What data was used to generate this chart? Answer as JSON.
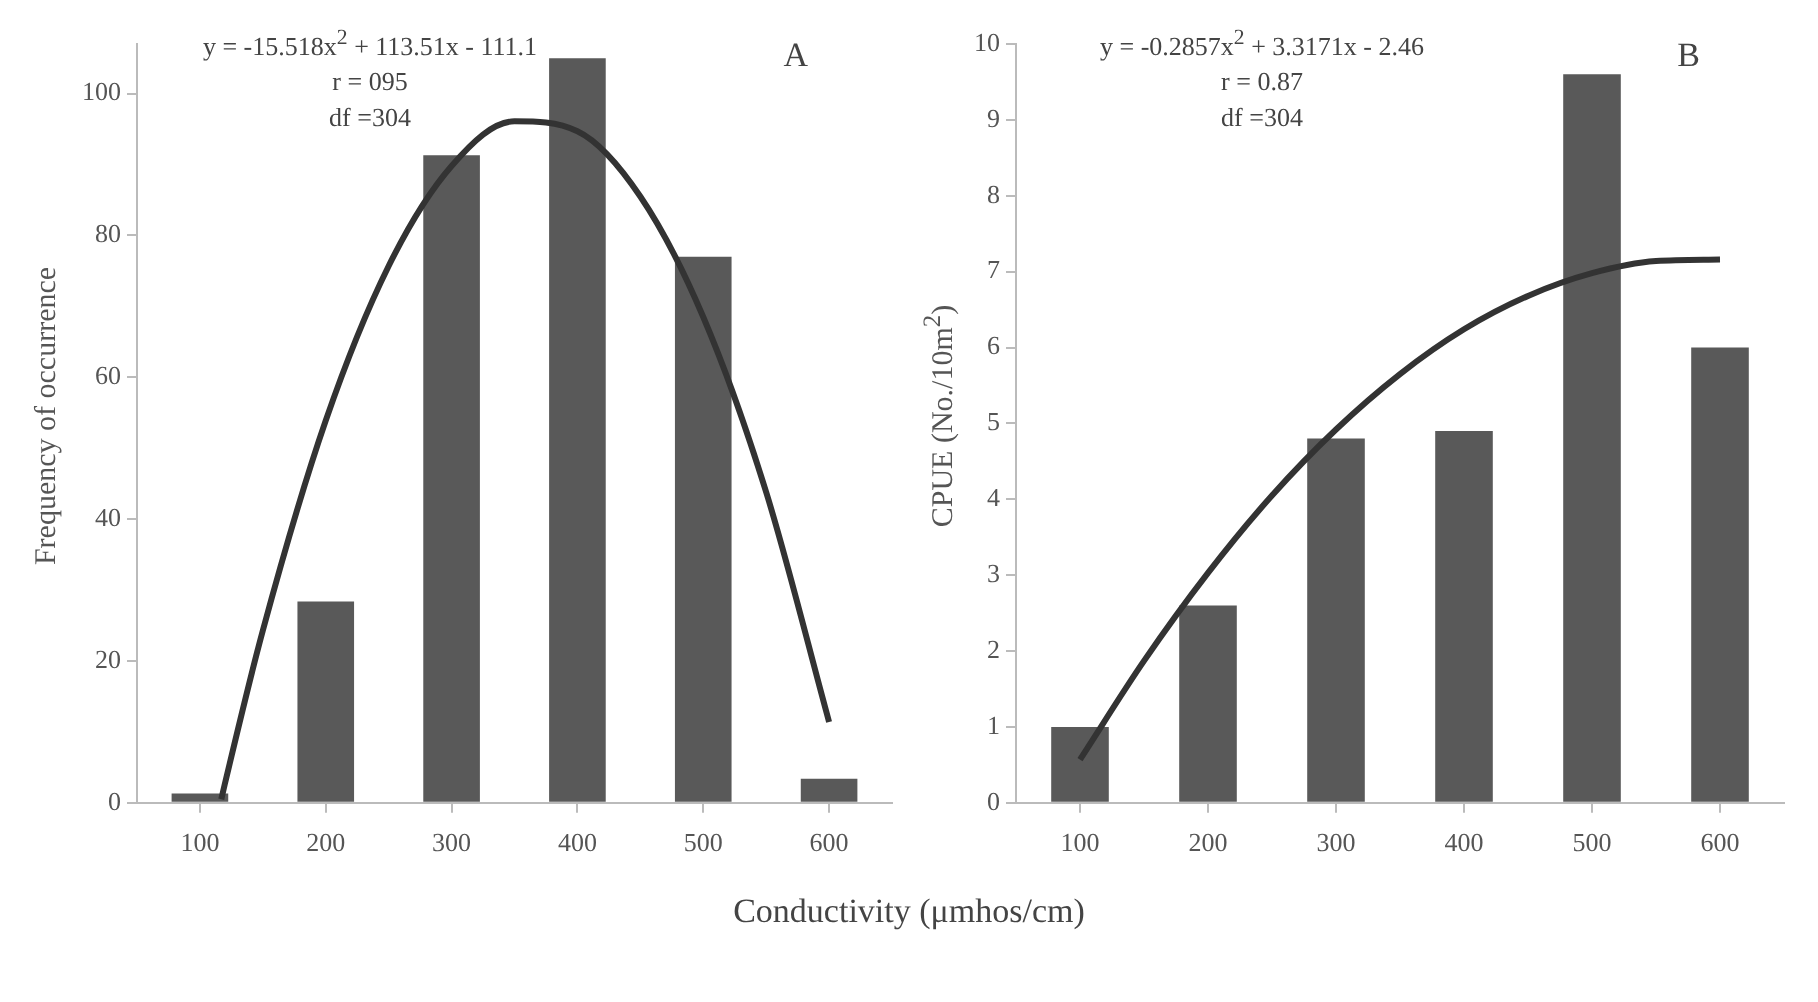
{
  "chart_data": [
    {
      "type": "bar",
      "title": "A",
      "ylabel": "Frequency of occurrence",
      "xlabel": "Conductivity (μmhos/cm)",
      "annotations": [
        "y = -15.518x$^{2}$ + 113.51x - 111.1",
        "r = 095",
        "df =304"
      ],
      "xlim": [
        50,
        650
      ],
      "xticks": [
        100,
        200,
        300,
        400,
        500,
        600
      ],
      "ylim": [
        0,
        107
      ],
      "yticks": [
        0,
        20,
        40,
        60,
        80,
        100
      ],
      "marker": "none",
      "x": [
        100,
        200,
        300,
        400,
        500,
        600
      ],
      "series": [
        {
          "color": "#595959",
          "values": [
            1.3,
            28.4,
            91.3,
            105,
            77,
            3.4
          ]
        },
        {
          "type": "line",
          "color": "#333333",
          "x": [
            117,
            120,
            150,
            200,
            250,
            300,
            350,
            400,
            450,
            500,
            550,
            600
          ],
          "values": [
            0.5,
            2.8,
            24.3,
            53.9,
            75.7,
            89.8,
            96.1,
            94.7,
            85.5,
            68.5,
            43.8,
            11.4
          ]
        }
      ]
    },
    {
      "type": "bar",
      "title": "B",
      "ylabel": "CPUE (No./10m$^{2}$)",
      "annotations": [
        "y = -0.2857x$^{2}$ + 3.3171x - 2.46",
        "r = 0.87",
        "df =304"
      ],
      "xlim": [
        50,
        650
      ],
      "xticks": [
        100,
        200,
        300,
        400,
        500,
        600
      ],
      "ylim": [
        0,
        10
      ],
      "yticks": [
        0,
        1,
        2,
        3,
        4,
        5,
        6,
        7,
        8,
        9,
        10
      ],
      "marker": "none",
      "x": [
        100,
        200,
        300,
        400,
        500,
        600
      ],
      "series": [
        {
          "color": "#595959",
          "values": [
            1.0,
            2.6,
            4.8,
            4.9,
            9.6,
            6.0
          ]
        },
        {
          "type": "line",
          "color": "#333333",
          "x": [
            100,
            150,
            200,
            250,
            300,
            350,
            400,
            450,
            500,
            550,
            600
          ],
          "values": [
            0.57,
            1.87,
            3.03,
            4.05,
            4.92,
            5.65,
            6.24,
            6.68,
            6.98,
            7.14,
            7.16
          ]
        }
      ]
    }
  ]
}
